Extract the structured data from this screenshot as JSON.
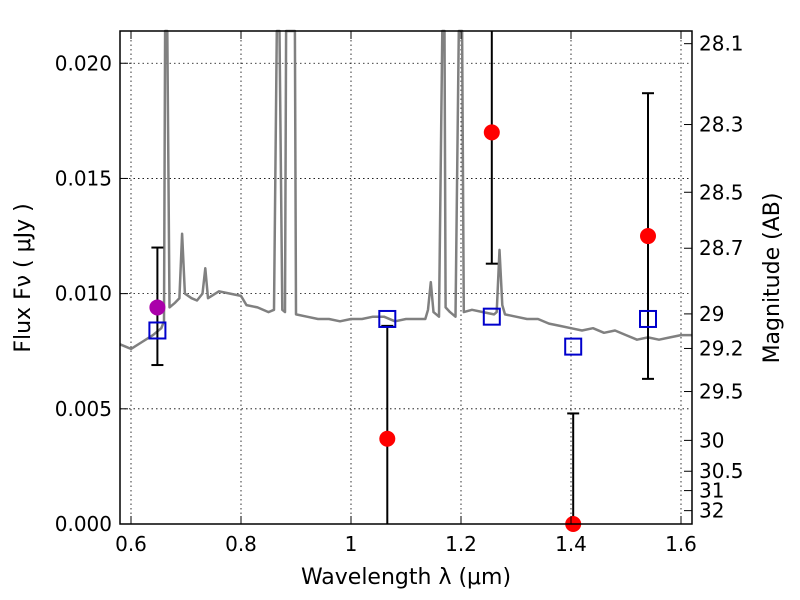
{
  "chart_data": {
    "type": "scatter",
    "xlabel": "Wavelength  λ (μm)",
    "ylabel": "Flux  Fν  ( μJy )",
    "y2label": "Magnitude (AB)",
    "xlim": [
      0.58,
      1.62
    ],
    "ylim": [
      0.0,
      0.0214
    ],
    "x_ticks": [
      {
        "value": 0.6,
        "label": "0.6"
      },
      {
        "value": 0.8,
        "label": "0.8"
      },
      {
        "value": 1.0,
        "label": "1"
      },
      {
        "value": 1.2,
        "label": "1.2"
      },
      {
        "value": 1.4,
        "label": "1.4"
      },
      {
        "value": 1.6,
        "label": "1.6"
      }
    ],
    "y_ticks": [
      {
        "value": 0.0,
        "label": "0.000"
      },
      {
        "value": 0.005,
        "label": "0.005"
      },
      {
        "value": 0.01,
        "label": "0.010"
      },
      {
        "value": 0.015,
        "label": "0.015"
      },
      {
        "value": 0.02,
        "label": "0.020"
      }
    ],
    "y2_ticks": [
      {
        "flux": 0.02085,
        "label": "28.1"
      },
      {
        "flux": 0.01734,
        "label": "28.3"
      },
      {
        "flux": 0.0144,
        "label": "28.5"
      },
      {
        "flux": 0.01197,
        "label": "28.7"
      },
      {
        "flux": 0.00912,
        "label": "29"
      },
      {
        "flux": 0.00762,
        "label": "29.2"
      },
      {
        "flux": 0.00575,
        "label": "29.5"
      },
      {
        "flux": 0.00363,
        "label": "30"
      },
      {
        "flux": 0.00229,
        "label": "30.5"
      },
      {
        "flux": 0.00145,
        "label": "31"
      },
      {
        "flux": 0.00058,
        "label": "32"
      }
    ],
    "grid": true,
    "model_spectrum": {
      "color": "#808080",
      "points": [
        [
          0.58,
          0.0078
        ],
        [
          0.6,
          0.0076
        ],
        [
          0.62,
          0.0079
        ],
        [
          0.64,
          0.0082
        ],
        [
          0.655,
          0.0085
        ],
        [
          0.66,
          0.0088
        ],
        [
          0.662,
          0.0214
        ],
        [
          0.666,
          0.0214
        ],
        [
          0.67,
          0.0094
        ],
        [
          0.68,
          0.0096
        ],
        [
          0.688,
          0.0098
        ],
        [
          0.693,
          0.0126
        ],
        [
          0.698,
          0.01
        ],
        [
          0.71,
          0.0098
        ],
        [
          0.72,
          0.0097
        ],
        [
          0.73,
          0.01
        ],
        [
          0.735,
          0.0111
        ],
        [
          0.74,
          0.0098
        ],
        [
          0.76,
          0.0101
        ],
        [
          0.78,
          0.01
        ],
        [
          0.8,
          0.0099
        ],
        [
          0.81,
          0.0095
        ],
        [
          0.83,
          0.0094
        ],
        [
          0.85,
          0.0092
        ],
        [
          0.86,
          0.0093
        ],
        [
          0.865,
          0.0214
        ],
        [
          0.87,
          0.0214
        ],
        [
          0.875,
          0.0093
        ],
        [
          0.88,
          0.0092
        ],
        [
          0.882,
          0.0214
        ],
        [
          0.888,
          0.0214
        ],
        [
          0.892,
          0.0214
        ],
        [
          0.898,
          0.0214
        ],
        [
          0.9,
          0.0091
        ],
        [
          0.92,
          0.009
        ],
        [
          0.94,
          0.0089
        ],
        [
          0.96,
          0.0089
        ],
        [
          0.98,
          0.0088
        ],
        [
          1.0,
          0.0089
        ],
        [
          1.02,
          0.0089
        ],
        [
          1.04,
          0.009
        ],
        [
          1.06,
          0.009
        ],
        [
          1.08,
          0.0088
        ],
        [
          1.1,
          0.0089
        ],
        [
          1.12,
          0.0089
        ],
        [
          1.135,
          0.0089
        ],
        [
          1.14,
          0.0093
        ],
        [
          1.145,
          0.0105
        ],
        [
          1.15,
          0.0092
        ],
        [
          1.16,
          0.009
        ],
        [
          1.166,
          0.0214
        ],
        [
          1.17,
          0.0214
        ],
        [
          1.172,
          0.0094
        ],
        [
          1.18,
          0.0092
        ],
        [
          1.19,
          0.009
        ],
        [
          1.196,
          0.0214
        ],
        [
          1.202,
          0.0214
        ],
        [
          1.205,
          0.0092
        ],
        [
          1.22,
          0.0093
        ],
        [
          1.24,
          0.0092
        ],
        [
          1.26,
          0.0091
        ],
        [
          1.265,
          0.0092
        ],
        [
          1.27,
          0.0119
        ],
        [
          1.275,
          0.0095
        ],
        [
          1.28,
          0.0091
        ],
        [
          1.3,
          0.009
        ],
        [
          1.32,
          0.0089
        ],
        [
          1.34,
          0.0089
        ],
        [
          1.36,
          0.0087
        ],
        [
          1.38,
          0.0086
        ],
        [
          1.4,
          0.0085
        ],
        [
          1.42,
          0.0084
        ],
        [
          1.44,
          0.0085
        ],
        [
          1.46,
          0.0083
        ],
        [
          1.48,
          0.0084
        ],
        [
          1.5,
          0.0082
        ],
        [
          1.52,
          0.008
        ],
        [
          1.54,
          0.0081
        ],
        [
          1.56,
          0.008
        ],
        [
          1.58,
          0.0081
        ],
        [
          1.6,
          0.0082
        ],
        [
          1.62,
          0.0082
        ]
      ]
    },
    "observed_points": {
      "color": "#ff0000",
      "points": [
        {
          "x": 1.066,
          "y": 0.0037,
          "err_low": 0.0037,
          "err_high": 0.0049
        },
        {
          "x": 1.256,
          "y": 0.017,
          "err_low": 0.0057,
          "err_high": 0.0044
        },
        {
          "x": 1.404,
          "y": 0.0,
          "err_low": 0.0,
          "err_high": 0.0048
        },
        {
          "x": 1.54,
          "y": 0.0125,
          "err_low": 0.0062,
          "err_high": 0.0062
        }
      ]
    },
    "highlighted_point": {
      "color": "#aa00aa",
      "x": 0.648,
      "y": 0.0094,
      "err_low": 0.0025,
      "err_high": 0.0026
    },
    "model_photometry": {
      "color": "#0000cc",
      "points": [
        {
          "x": 0.648,
          "y": 0.0084
        },
        {
          "x": 1.066,
          "y": 0.0089
        },
        {
          "x": 1.256,
          "y": 0.009
        },
        {
          "x": 1.404,
          "y": 0.0077
        },
        {
          "x": 1.54,
          "y": 0.0089
        }
      ]
    }
  }
}
